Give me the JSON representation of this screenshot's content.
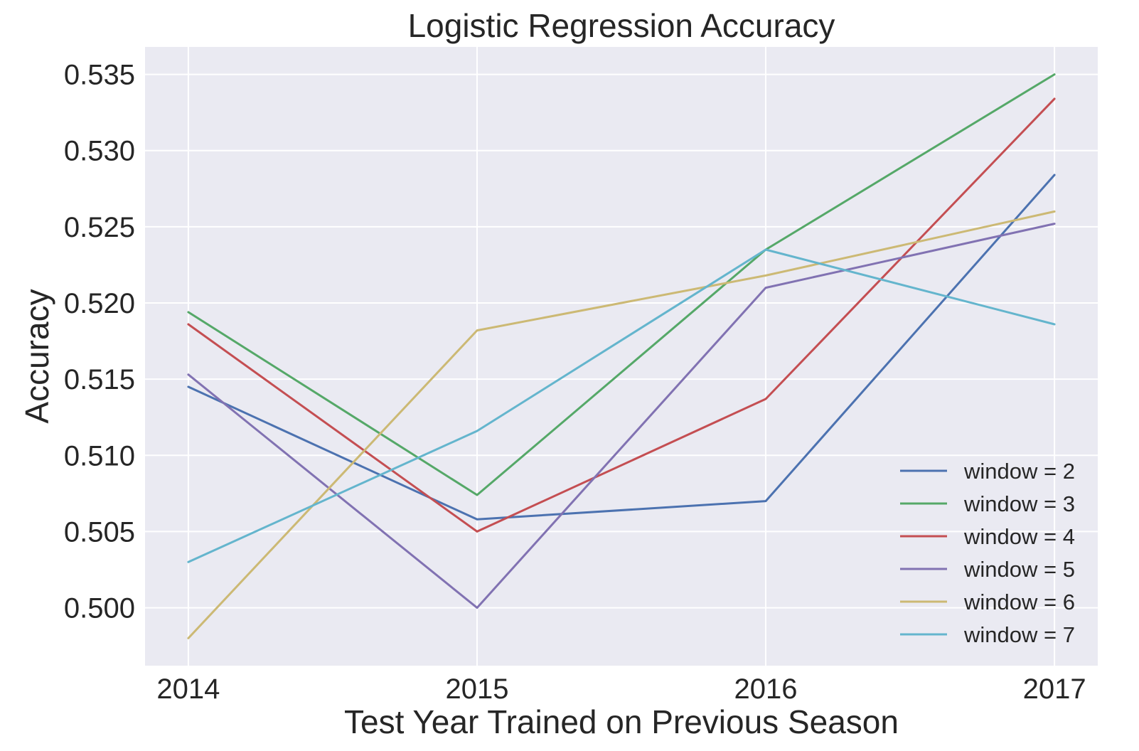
{
  "chart_data": {
    "type": "line",
    "title": "Logistic Regression Accuracy",
    "xlabel": "Test Year Trained on Previous Season",
    "ylabel": "Accuracy",
    "x": [
      2014,
      2015,
      2016,
      2017
    ],
    "xlim": [
      2013.85,
      2017.15
    ],
    "ylim": [
      0.4962,
      0.5368
    ],
    "xticks": [
      "2014",
      "2015",
      "2016",
      "2017"
    ],
    "yticks": [
      "0.500",
      "0.505",
      "0.510",
      "0.515",
      "0.520",
      "0.525",
      "0.530",
      "0.535"
    ],
    "grid": true,
    "background": "#eaeaf2",
    "legend_position": "lower-right",
    "series": [
      {
        "name": "window = 2",
        "color": "#4c72b0",
        "values": [
          0.5145,
          0.5058,
          0.507,
          0.5284
        ]
      },
      {
        "name": "window = 3",
        "color": "#55a868",
        "values": [
          0.5194,
          0.5074,
          0.5235,
          0.535
        ]
      },
      {
        "name": "window = 4",
        "color": "#c44e52",
        "values": [
          0.5186,
          0.505,
          0.5137,
          0.5334
        ]
      },
      {
        "name": "window = 5",
        "color": "#8172b2",
        "values": [
          0.5153,
          0.5,
          0.521,
          0.5252
        ]
      },
      {
        "name": "window = 6",
        "color": "#ccb974",
        "values": [
          0.498,
          0.5182,
          0.5218,
          0.526
        ]
      },
      {
        "name": "window = 7",
        "color": "#64b5cd",
        "values": [
          0.503,
          0.5116,
          0.5235,
          0.5186
        ]
      }
    ]
  }
}
